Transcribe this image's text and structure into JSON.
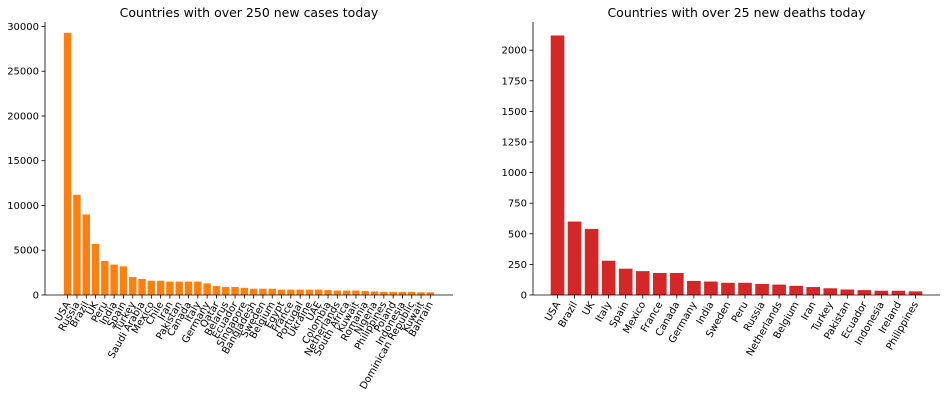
{
  "chart_data": [
    {
      "type": "bar",
      "title": "Countries with over 250 new cases today",
      "xlabel": "",
      "ylabel": "",
      "color": "#ff7f0e",
      "ylim": [
        0,
        30500
      ],
      "yticks": [
        0,
        5000,
        10000,
        15000,
        20000,
        25000,
        30000
      ],
      "ytick_labels": [
        "0",
        "5000",
        "10000",
        "15000",
        "20000",
        "25000",
        "30000"
      ],
      "grid": false,
      "categories": [
        "USA",
        "Russia",
        "Brazil",
        "UK",
        "Peru",
        "India",
        "Spain",
        "Turkey",
        "Saudi Arabia",
        "Mexico",
        "Chile",
        "Iran",
        "Pakistan",
        "Canada",
        "Italy",
        "Germany",
        "Qatar",
        "Belarus",
        "Ecuador",
        "Singapore",
        "Bangladesh",
        "Sweden",
        "Belgium",
        "Egypt",
        "France",
        "Portugal",
        "Ukraine",
        "UAE",
        "Colombia",
        "Netherlands",
        "South Africa",
        "Kuwait",
        "Romania",
        "Nigeria",
        "Philippines",
        "Poland",
        "Indonesia",
        "Dominican Republic",
        "Kuwait",
        "Bahrain"
      ],
      "values": [
        29300,
        11200,
        9000,
        5700,
        3800,
        3400,
        3200,
        2000,
        1800,
        1600,
        1600,
        1500,
        1500,
        1500,
        1500,
        1300,
        1000,
        900,
        900,
        800,
        700,
        700,
        700,
        600,
        600,
        600,
        600,
        600,
        550,
        500,
        500,
        500,
        450,
        400,
        350,
        350,
        350,
        350,
        300,
        300
      ]
    },
    {
      "type": "bar",
      "title": "Countries with over 25 new deaths today",
      "xlabel": "",
      "ylabel": "",
      "color": "#d62728",
      "ylim": [
        0,
        2230
      ],
      "yticks": [
        0,
        250,
        500,
        750,
        1000,
        1250,
        1500,
        1750,
        2000
      ],
      "ytick_labels": [
        "0",
        "250",
        "500",
        "750",
        "1000",
        "1250",
        "1500",
        "1750",
        "2000"
      ],
      "grid": false,
      "categories": [
        "USA",
        "Brazil",
        "UK",
        "Italy",
        "Spain",
        "Mexico",
        "France",
        "Canada",
        "Germany",
        "India",
        "Sweden",
        "Peru",
        "Russia",
        "Netherlands",
        "Belgium",
        "Iran",
        "Turkey",
        "Pakistan",
        "Ecuador",
        "Indonesia",
        "Ireland",
        "Philippines"
      ],
      "values": [
        2120,
        600,
        540,
        280,
        215,
        195,
        180,
        180,
        115,
        110,
        100,
        100,
        90,
        85,
        75,
        65,
        55,
        45,
        40,
        35,
        35,
        30
      ]
    }
  ]
}
